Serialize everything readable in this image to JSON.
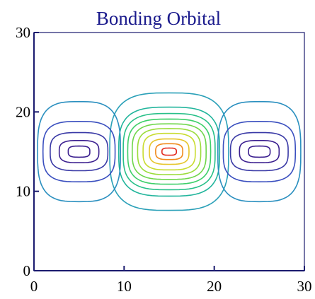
{
  "chart_data": {
    "type": "contour",
    "title": "Bonding Orbital",
    "xlabel": "",
    "ylabel": "",
    "xlim": [
      0,
      30
    ],
    "ylim": [
      0,
      30
    ],
    "x_ticks": [
      0,
      10,
      20,
      30
    ],
    "y_ticks": [
      0,
      10,
      20,
      30
    ],
    "grid": false,
    "colormap": [
      "#3b1f8f",
      "#3a4fbf",
      "#2a8fbf",
      "#22b5a6",
      "#3ecf6a",
      "#9bdc3a",
      "#e0d62a",
      "#f08a1c",
      "#e2281e"
    ],
    "contour_groups": [
      {
        "center": [
          15,
          15
        ],
        "levels": [
          {
            "rx": 6.6,
            "ry": 7.4,
            "color": "#2aa0b8"
          },
          {
            "rx": 5.6,
            "ry": 5.6,
            "color": "#22b59c"
          },
          {
            "rx": 5.1,
            "ry": 4.8,
            "color": "#28c089"
          },
          {
            "rx": 4.6,
            "ry": 4.1,
            "color": "#3ecf6a"
          },
          {
            "rx": 4.1,
            "ry": 3.5,
            "color": "#6ed64a"
          },
          {
            "rx": 3.5,
            "ry": 2.9,
            "color": "#9bdc3a"
          },
          {
            "rx": 2.9,
            "ry": 2.3,
            "color": "#c9dc30"
          },
          {
            "rx": 2.2,
            "ry": 1.6,
            "color": "#e6c52a"
          },
          {
            "rx": 1.5,
            "ry": 1.0,
            "color": "#f08a1c"
          },
          {
            "rx": 0.8,
            "ry": 0.45,
            "color": "#e2281e"
          }
        ]
      },
      {
        "center": [
          5,
          15
        ],
        "levels": [
          {
            "rx": 4.6,
            "ry": 6.3,
            "color": "#2a8fbf"
          },
          {
            "rx": 4.0,
            "ry": 3.8,
            "color": "#3a4fbf"
          },
          {
            "rx": 3.2,
            "ry": 2.4,
            "color": "#3a3aa6"
          },
          {
            "rx": 2.2,
            "ry": 1.4,
            "color": "#3b1f8f"
          },
          {
            "rx": 1.2,
            "ry": 0.7,
            "color": "#3b1f8f"
          }
        ]
      },
      {
        "center": [
          25,
          15
        ],
        "levels": [
          {
            "rx": 4.6,
            "ry": 6.3,
            "color": "#2a8fbf"
          },
          {
            "rx": 4.0,
            "ry": 3.8,
            "color": "#3a4fbf"
          },
          {
            "rx": 3.2,
            "ry": 2.4,
            "color": "#3a3aa6"
          },
          {
            "rx": 2.2,
            "ry": 1.4,
            "color": "#3b1f8f"
          },
          {
            "rx": 1.2,
            "ry": 0.7,
            "color": "#3b1f8f"
          }
        ]
      }
    ]
  }
}
